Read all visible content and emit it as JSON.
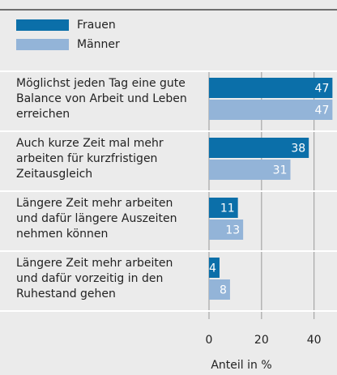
{
  "chart_data": {
    "type": "bar",
    "orientation": "horizontal",
    "categories": [
      "Möglichst jeden Tag eine gute\nBalance von Arbeit und Leben\nerreichen",
      "Auch kurze Zeit mal mehr\narbeiten für kurzfristigen\nZeitausgleich",
      "Längere Zeit mehr arbeiten\nund dafür längere Auszeiten\nnehmen können",
      "Längere Zeit mehr arbeiten\nund dafür vorzeitig in den\nRuhestand gehen"
    ],
    "series": [
      {
        "name": "Frauen",
        "color": "#0b6fa9",
        "values": [
          47,
          38,
          11,
          4
        ]
      },
      {
        "name": "Männer",
        "color": "#93b4d8",
        "values": [
          47,
          31,
          13,
          8
        ]
      }
    ],
    "xlabel": "Anteil in %",
    "xlim": [
      0,
      47.5
    ],
    "xticks": [
      0,
      20,
      40
    ],
    "grid": true,
    "legend": "top-left"
  }
}
